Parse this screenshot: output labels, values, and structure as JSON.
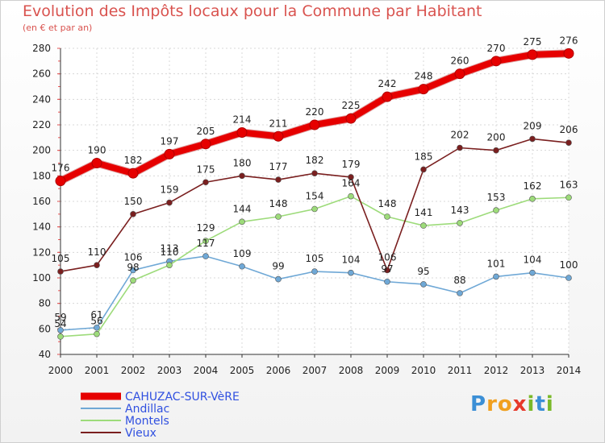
{
  "title": "Evolution des Impôts locaux pour la Commune par Habitant",
  "subtitle": "(en € et par an)",
  "logo": {
    "text": "Proxiti",
    "letters": [
      "P",
      "r",
      "o",
      "x",
      "i",
      "t",
      "i"
    ],
    "colors": [
      "#3b8fd6",
      "#f0a020",
      "#f0a020",
      "#e6392b",
      "#7ab929",
      "#3b8fd6",
      "#7ab929"
    ]
  },
  "chart_data": {
    "type": "line",
    "x": [
      "2000",
      "2001",
      "2002",
      "2003",
      "2004",
      "2005",
      "2006",
      "2007",
      "2008",
      "2009",
      "2010",
      "2011",
      "2012",
      "2013",
      "2014"
    ],
    "ylim": [
      40,
      280
    ],
    "yticks": [
      40,
      60,
      80,
      100,
      120,
      140,
      160,
      180,
      200,
      220,
      240,
      260,
      280
    ],
    "grid": true,
    "legend_placement": "bottom-left",
    "series": [
      {
        "name": "CAHUZAC-SUR-VèRE",
        "color": "#e60000",
        "values": [
          176,
          190,
          182,
          197,
          205,
          214,
          211,
          220,
          225,
          242,
          248,
          260,
          270,
          275,
          276
        ]
      },
      {
        "name": "Andillac",
        "color": "#6fa8d6",
        "values": [
          59,
          61,
          106,
          113,
          117,
          109,
          99,
          105,
          104,
          97,
          95,
          88,
          101,
          104,
          100
        ]
      },
      {
        "name": "Montels",
        "color": "#9ddb7a",
        "values": [
          54,
          56,
          98,
          110,
          129,
          144,
          148,
          154,
          164,
          148,
          141,
          143,
          153,
          162,
          163
        ]
      },
      {
        "name": "Vieux",
        "color": "#7a1f1f",
        "values": [
          105,
          110,
          150,
          159,
          175,
          180,
          177,
          182,
          179,
          106,
          185,
          202,
          200,
          209,
          206
        ]
      }
    ],
    "data_labels": {
      "CAHUZAC-SUR-VèRE": [
        "176",
        "190",
        "182",
        "197",
        "205",
        "214",
        "211",
        "220",
        "225",
        "242",
        "248",
        "260",
        "270",
        "275",
        "276"
      ],
      "Andillac": [
        "59",
        "61",
        "106",
        "113",
        "117",
        "109",
        "99",
        "105",
        "104",
        "97",
        "95",
        "88",
        "101",
        "104",
        "100"
      ],
      "Montels": [
        "54",
        "56",
        "98",
        "110",
        "129",
        "144",
        "148",
        "154",
        "164",
        "148",
        "141",
        "143",
        "153",
        "162",
        "163"
      ],
      "Vieux": [
        "105",
        "110",
        "150",
        "159",
        "175",
        "180",
        "177",
        "182",
        "179",
        "106",
        "185",
        "202",
        "200",
        "209",
        "206"
      ]
    }
  }
}
